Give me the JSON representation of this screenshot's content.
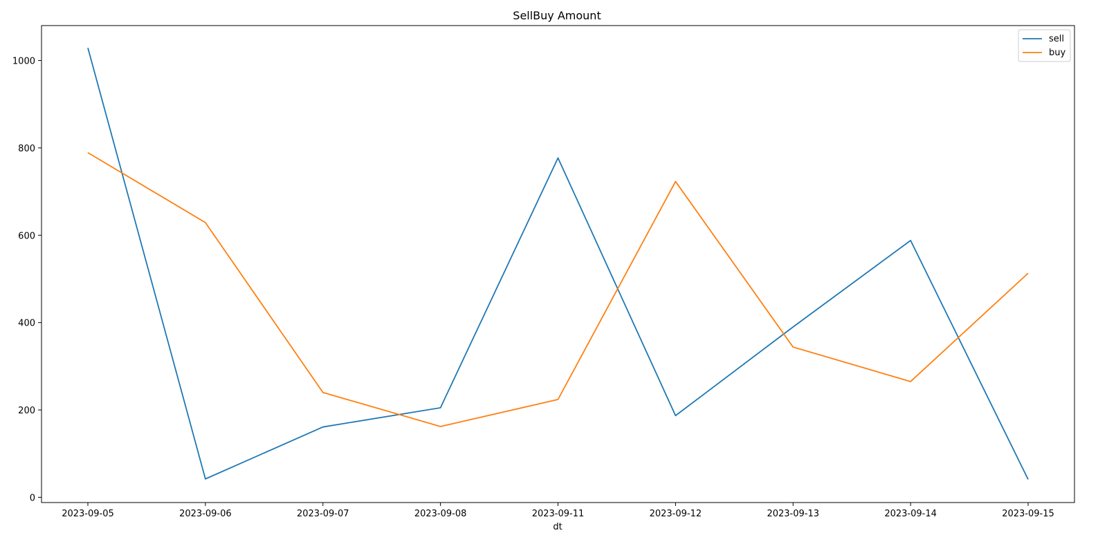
{
  "chart_data": {
    "type": "line",
    "title": "SellBuy Amount",
    "xlabel": "dt",
    "ylabel": "",
    "categories": [
      "2023-09-05",
      "2023-09-06",
      "2023-09-07",
      "2023-09-08",
      "2023-09-11",
      "2023-09-12",
      "2023-09-13",
      "2023-09-14",
      "2023-09-15"
    ],
    "ylim": [
      -12,
      1080
    ],
    "yticks": [
      0,
      200,
      400,
      600,
      800,
      1000
    ],
    "grid": false,
    "legend_position": "top-right",
    "series": [
      {
        "name": "sell",
        "color": "#1f77b4",
        "values": [
          1029,
          42,
          161,
          205,
          777,
          187,
          390,
          588,
          41
        ]
      },
      {
        "name": "buy",
        "color": "#ff7f0e",
        "values": [
          789,
          629,
          240,
          162,
          224,
          723,
          344,
          265,
          513
        ]
      }
    ]
  }
}
